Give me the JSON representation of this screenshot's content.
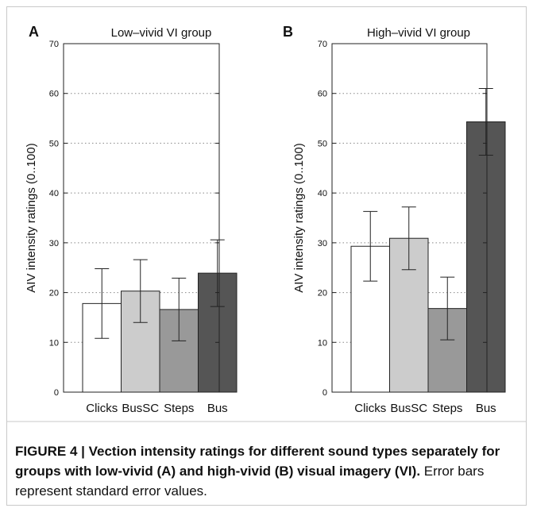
{
  "figure_caption": {
    "lead": "FIGURE 4 | Vection intensity ratings for different sound types separately for groups with low-vivid (A) and high-vivid (B) visual imagery (VI).",
    "rest": " Error bars represent standard error values."
  },
  "chart_data": [
    {
      "type": "bar",
      "panel_label": "A",
      "title": "Low–vivid VI group",
      "ylabel": "AIV intensity ratings (0..100)",
      "xlabel": "",
      "ylim": [
        0,
        70
      ],
      "yticks": [
        0,
        10,
        20,
        30,
        40,
        50,
        60,
        70
      ],
      "grid": "horizontal dotted",
      "categories": [
        "Clicks",
        "BusSC",
        "Steps",
        "Bus"
      ],
      "values": [
        17.8,
        20.3,
        16.6,
        23.9
      ],
      "errors": [
        7.0,
        6.3,
        6.3,
        6.7
      ],
      "colors": [
        "#ffffff",
        "#cccccc",
        "#999999",
        "#555555"
      ]
    },
    {
      "type": "bar",
      "panel_label": "B",
      "title": "High–vivid VI group",
      "ylabel": "AIV intensity ratings (0..100)",
      "xlabel": "",
      "ylim": [
        0,
        70
      ],
      "yticks": [
        0,
        10,
        20,
        30,
        40,
        50,
        60,
        70
      ],
      "grid": "horizontal dotted",
      "categories": [
        "Clicks",
        "BusSC",
        "Steps",
        "Bus"
      ],
      "values": [
        29.3,
        30.9,
        16.8,
        54.3
      ],
      "errors": [
        7.0,
        6.3,
        6.3,
        6.7
      ],
      "colors": [
        "#ffffff",
        "#cccccc",
        "#999999",
        "#555555"
      ]
    }
  ]
}
